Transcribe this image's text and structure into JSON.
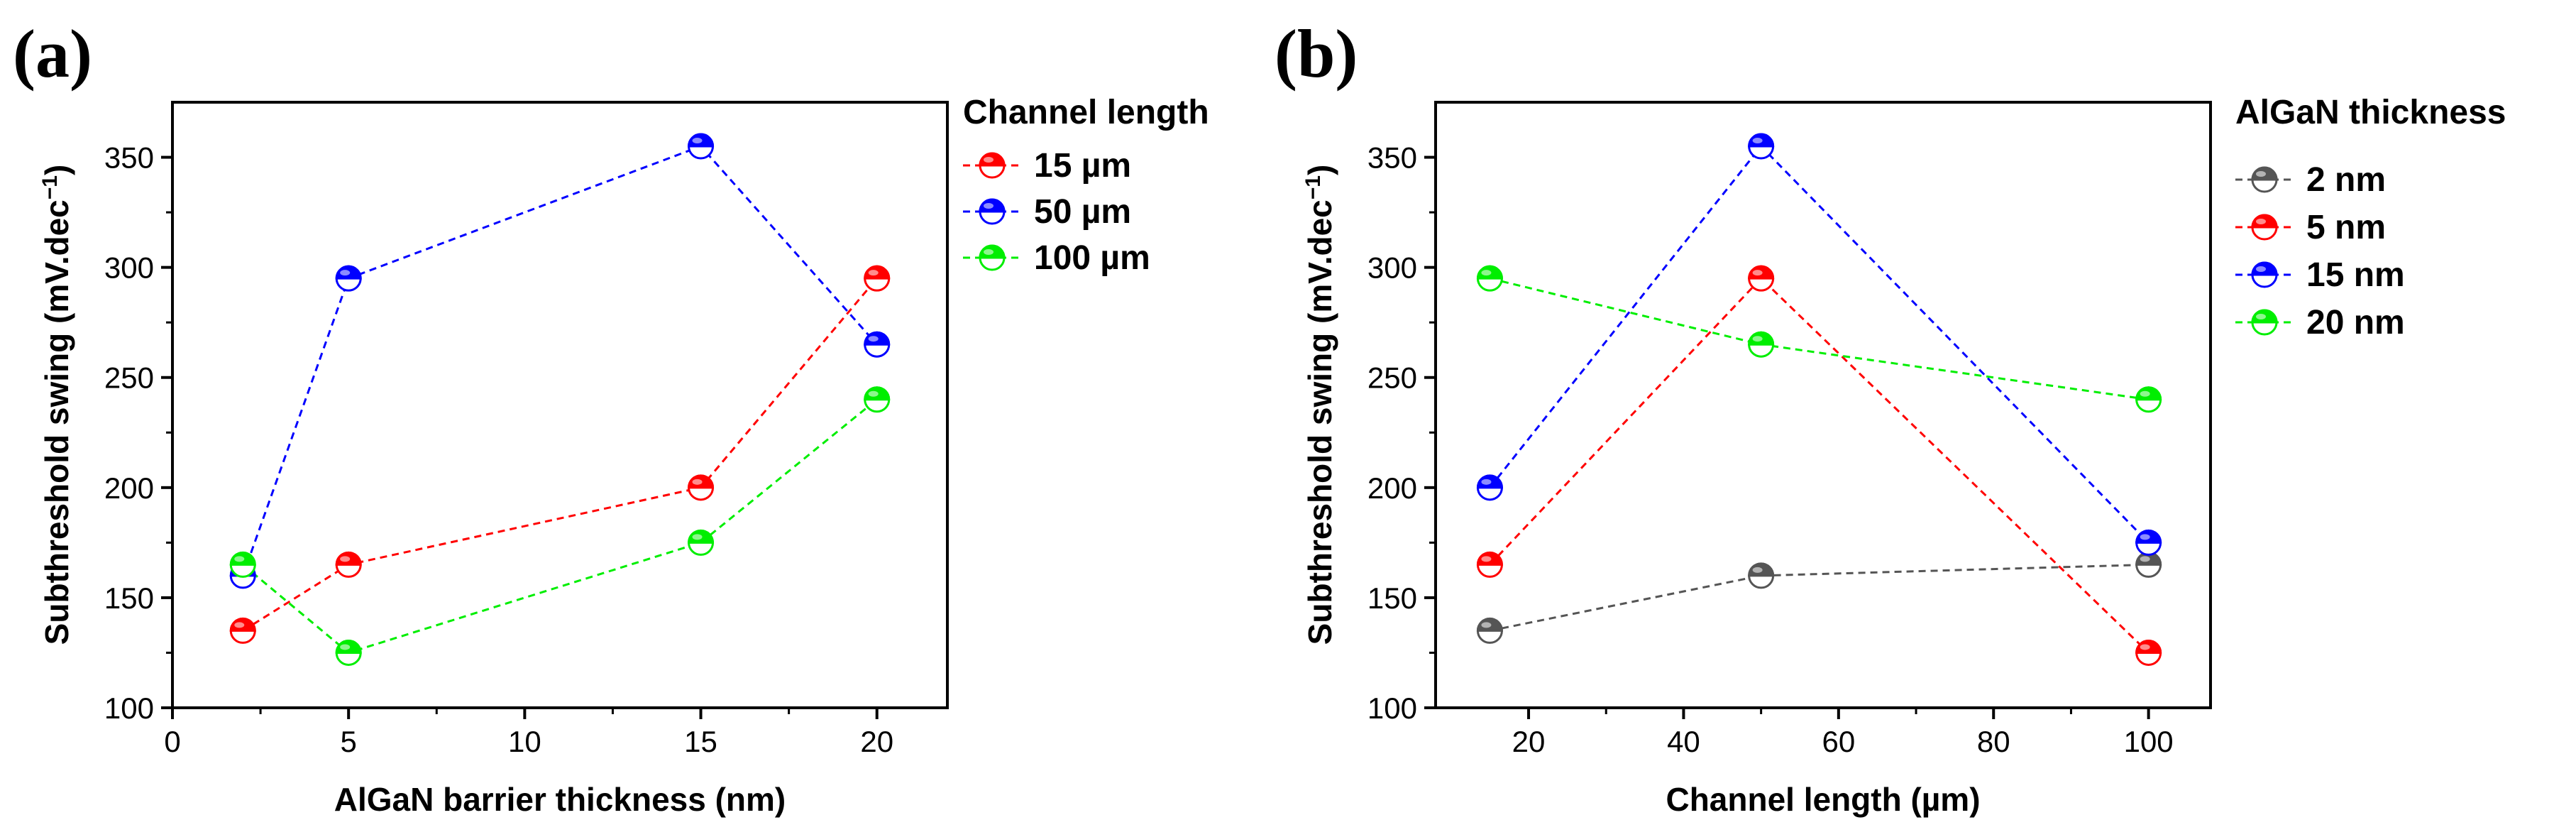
{
  "chart_data": [
    {
      "type": "line",
      "panel_label": "(a)",
      "xlabel": "AlGaN barrier thickness (nm)",
      "ylabel": "Subthreshold swing (mV.dec",
      "ylabel_sup": "−1",
      "ylabel_end": ")",
      "xlim": [
        0,
        22
      ],
      "ylim": [
        100,
        375
      ],
      "xticks": [
        0,
        5,
        10,
        15,
        20
      ],
      "yticks": [
        100,
        150,
        200,
        250,
        300,
        350
      ],
      "legend": {
        "title": "Channel length",
        "position": "outside-top-right"
      },
      "series": [
        {
          "name": "15 µm",
          "color": "#ff0000",
          "x": [
            2,
            5,
            15,
            20
          ],
          "y": [
            135,
            165,
            200,
            295
          ]
        },
        {
          "name": "50 µm",
          "color": "#0000ff",
          "x": [
            2,
            5,
            15,
            20
          ],
          "y": [
            160,
            295,
            355,
            265
          ]
        },
        {
          "name": "100 µm",
          "color": "#00ee00",
          "x": [
            2,
            5,
            15,
            20
          ],
          "y": [
            165,
            125,
            175,
            240
          ]
        }
      ]
    },
    {
      "type": "line",
      "panel_label": "(b)",
      "xlabel": "Channel length (µm)",
      "ylabel": "Subthreshold swing (mV.dec",
      "ylabel_sup": "−1",
      "ylabel_end": ")",
      "xlim": [
        8,
        108
      ],
      "ylim": [
        100,
        375
      ],
      "xticks": [
        20,
        40,
        60,
        80,
        100
      ],
      "yticks": [
        100,
        150,
        200,
        250,
        300,
        350
      ],
      "legend": {
        "title": "AlGaN thickness",
        "position": "outside-top-right"
      },
      "series": [
        {
          "name": "2 nm",
          "color": "#555555",
          "x": [
            15,
            50,
            100
          ],
          "y": [
            135,
            160,
            165
          ]
        },
        {
          "name": "5 nm",
          "color": "#ff0000",
          "x": [
            15,
            50,
            100
          ],
          "y": [
            165,
            295,
            125
          ]
        },
        {
          "name": "15 nm",
          "color": "#0000ff",
          "x": [
            15,
            50,
            100
          ],
          "y": [
            200,
            355,
            175
          ]
        },
        {
          "name": "20 nm",
          "color": "#00ee00",
          "x": [
            15,
            50,
            100
          ],
          "y": [
            295,
            265,
            240
          ]
        }
      ]
    }
  ]
}
